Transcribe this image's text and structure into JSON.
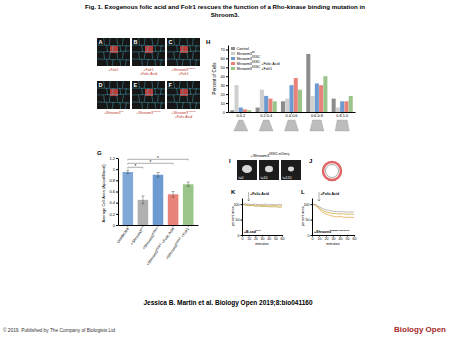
{
  "title_lines": [
    "Fig. 1. Exogenous folic acid and Folr1 rescues the function of a Rho-kinase binding mutation in",
    "Shroom3."
  ],
  "image_panels": [
    {
      "letter": "A",
      "label": [
        "+Folr1"
      ]
    },
    {
      "letter": "B",
      "label": [
        "+Folr1",
        "+Folic Acid"
      ]
    },
    {
      "letter": "C",
      "label": [
        {
          "text": "+Shroom3",
          "sup": "K836C"
        },
        "+Folr1"
      ]
    },
    {
      "letter": "D",
      "label": [
        {
          "text": "+Shroom3",
          "sup": "wt"
        }
      ]
    },
    {
      "letter": "E",
      "label": [
        {
          "text": "+Shroom3",
          "sup": "K836C"
        }
      ]
    },
    {
      "letter": "F",
      "label": [
        {
          "text": "+Shroom3",
          "sup": "K836C"
        },
        "+Folic Acid"
      ]
    }
  ],
  "movie_panel": {
    "letter": "I",
    "label": {
      "text": "+Shroom3",
      "sup": "K836C-mCherry"
    },
    "times": [
      "t=0",
      "t=10",
      "t=120"
    ]
  },
  "diagram_panel": {
    "letter": "J"
  },
  "chart_data": [
    {
      "panel_label": "H",
      "type": "bar",
      "categories": [
        "0-0.2",
        "0.2-0.4",
        "0.4-0.6",
        "0.6-0.8",
        "0.8-1.0"
      ],
      "series": [
        {
          "name": "Control",
          "color": "#8c8c8c",
          "values": [
            2,
            5,
            12,
            65,
            15
          ]
        },
        {
          "name": {
            "text": "Shroom3",
            "sup": "wt"
          },
          "color": "#cfcfcf",
          "values": [
            30,
            25,
            15,
            18,
            5
          ]
        },
        {
          "name": {
            "text": "Shroom3",
            "sup": "K836C"
          },
          "color": "#6d9bd1",
          "values": [
            5,
            18,
            30,
            32,
            12
          ]
        },
        {
          "name": {
            "text": "Shroom3",
            "sup": "K836C",
            "post": "+Folic Acid"
          },
          "color": "#e8837a",
          "values": [
            3,
            15,
            38,
            30,
            12
          ]
        },
        {
          "name": {
            "text": "Shroom3",
            "sup": "K836C",
            "post": "+Folr1"
          },
          "color": "#9bc48a",
          "values": [
            2,
            12,
            25,
            40,
            18
          ]
        }
      ],
      "ylim": [
        0,
        75
      ],
      "yticks": [
        0,
        10,
        20,
        30,
        40,
        50,
        60,
        70
      ],
      "y_label": "Percent of Cells",
      "legend": "top-left"
    },
    {
      "panel_label": "G",
      "type": "bar",
      "categories": [
        "Uninjected",
        {
          "text": "+Shroom3",
          "sup": "wt"
        },
        {
          "text": "+Shroom3",
          "sup": "K836C"
        },
        {
          "text": "+Shroom3",
          "sup": "K836C",
          "post": "+Folic Acid"
        },
        {
          "text": "+Shroom3",
          "sup": "K836C",
          "post": "+Folr1"
        }
      ],
      "values": [
        0.95,
        0.45,
        0.9,
        0.55,
        0.73
      ],
      "errors": [
        0.03,
        0.07,
        0.04,
        0.05,
        0.04
      ],
      "colors": [
        "#7fa8d8",
        "#b0b0b0",
        "#6d9bd1",
        "#e8837a",
        "#9bc48a"
      ],
      "ylim": [
        0,
        1.2
      ],
      "yticks": [
        0,
        0.2,
        0.4,
        0.6,
        0.8,
        1,
        1.2
      ],
      "y_label": "Average Cell Area (Apical/Basal)",
      "significance": [
        {
          "pair": [
            0,
            1
          ],
          "label": "*"
        },
        {
          "pair": [
            0,
            3
          ],
          "label": "*"
        },
        {
          "pair": [
            0,
            4
          ],
          "label": "*"
        }
      ]
    },
    {
      "panel_label": "K",
      "type": "line",
      "x": [
        0,
        5,
        10,
        15,
        20,
        25,
        30,
        35,
        40,
        45,
        50,
        55,
        60
      ],
      "series": [
        {
          "color": "#e8a33d",
          "values": [
            100,
            99,
            97,
            98,
            96,
            97,
            95,
            96,
            94,
            95,
            96,
            94,
            95
          ]
        },
        {
          "color": "#a0a0a0",
          "values": [
            100,
            101,
            100,
            99,
            100,
            98,
            99,
            100,
            98,
            99,
            98,
            99,
            98
          ]
        },
        {
          "color": "#b5a33a",
          "values": [
            100,
            97,
            95,
            96,
            93,
            94,
            92,
            93,
            92,
            91,
            92,
            90,
            91
          ]
        }
      ],
      "xlim": [
        0,
        60
      ],
      "xticks": [
        0,
        10,
        20,
        30,
        40,
        50,
        60
      ],
      "ylim": [
        0,
        120
      ],
      "yticks": [
        0,
        50,
        100
      ],
      "x_label": "minutes",
      "y_label": "percent area",
      "annotation": {
        "text": "+Folic Acid",
        "x": 10
      },
      "inset_label": {
        "text": "+B-cad",
        "sup": "GFP"
      }
    },
    {
      "panel_label": "L",
      "type": "line",
      "x": [
        0,
        5,
        10,
        15,
        20,
        25,
        30,
        35,
        40,
        45,
        50,
        55,
        60
      ],
      "series": [
        {
          "color": "#e8a33d",
          "values": [
            100,
            98,
            85,
            74,
            68,
            64,
            61,
            59,
            60,
            58,
            57,
            58,
            56
          ]
        },
        {
          "color": "#c9a227",
          "values": [
            100,
            97,
            88,
            80,
            75,
            72,
            70,
            69,
            68,
            69,
            67,
            68,
            67
          ]
        },
        {
          "color": "#a0a0a0",
          "values": [
            100,
            99,
            92,
            86,
            82,
            79,
            77,
            76,
            75,
            76,
            74,
            75,
            74
          ]
        }
      ],
      "xlim": [
        0,
        60
      ],
      "xticks": [
        0,
        10,
        20,
        30,
        40,
        50,
        60
      ],
      "ylim": [
        0,
        120
      ],
      "yticks": [
        0,
        50,
        100
      ],
      "x_label": "minutes",
      "y_label": "percent area",
      "annotation": {
        "text": "+Folic Acid",
        "x": 10
      },
      "inset_label": {
        "text": "+Shroom3",
        "sup": "K836C-mCherry"
      }
    }
  ],
  "footer": "Jessica B. Martin et al. Biology Open 2019;8:bio041160",
  "copyright": "© 2019. Published by The Company of Biologists Ltd",
  "logo": "Biology Open"
}
